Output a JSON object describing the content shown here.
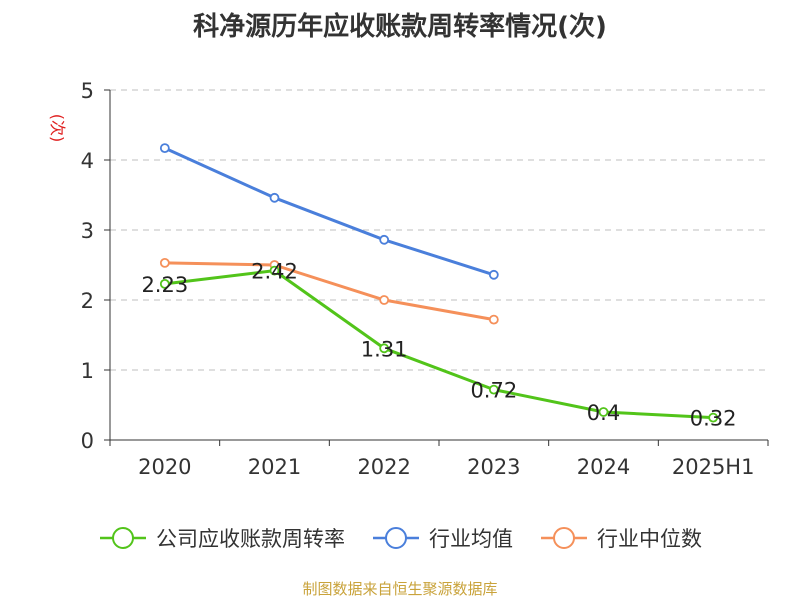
{
  "title": "科净源历年应收账款周转率情况(次)",
  "source": "制图数据来自恒生聚源数据库",
  "chart_data": {
    "type": "line",
    "categories": [
      "2020",
      "2021",
      "2022",
      "2023",
      "2024",
      "2025H1"
    ],
    "ylabel": "(次)",
    "ylim": [
      0,
      5
    ],
    "yticks": [
      0,
      1,
      2,
      3,
      4,
      5
    ],
    "grid": true,
    "legend_position": "bottom",
    "series": [
      {
        "name": "公司应收账款周转率",
        "color": "#52c41a",
        "values": [
          2.23,
          2.42,
          1.31,
          0.72,
          0.4,
          0.32
        ],
        "labels": [
          "2.23",
          "2.42",
          "1.31",
          "0.72",
          "0.4",
          "0.32"
        ]
      },
      {
        "name": "行业均值",
        "color": "#4a7fdb",
        "values": [
          4.17,
          3.46,
          2.86,
          2.36,
          null,
          null
        ]
      },
      {
        "name": "行业中位数",
        "color": "#f5905a",
        "values": [
          2.53,
          2.5,
          2.0,
          1.72,
          null,
          null
        ]
      }
    ]
  }
}
